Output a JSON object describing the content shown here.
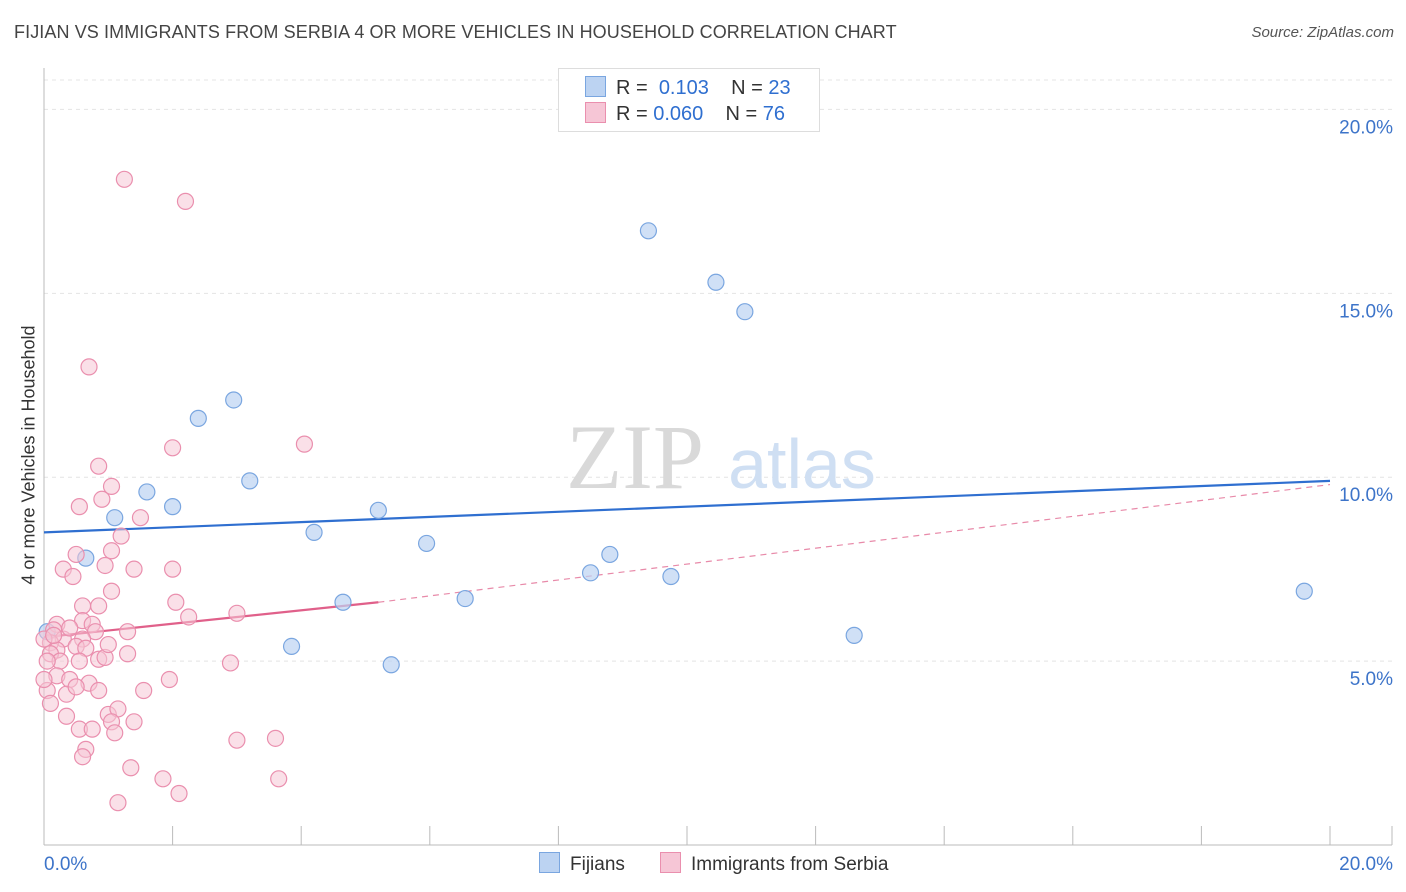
{
  "title": "FIJIAN VS IMMIGRANTS FROM SERBIA 4 OR MORE VEHICLES IN HOUSEHOLD CORRELATION CHART",
  "source": "Source: ZipAtlas.com",
  "watermark": {
    "zip": "ZIP",
    "atlas": "atlas"
  },
  "legend": {
    "r_label": "R =",
    "n_label": "N =",
    "rows": [
      {
        "r": "0.103",
        "n": "23"
      },
      {
        "r": "0.060",
        "n": "76"
      }
    ]
  },
  "chart_data": {
    "type": "scatter",
    "title": "FIJIAN VS IMMIGRANTS FROM SERBIA 4 OR MORE VEHICLES IN HOUSEHOLD CORRELATION CHART",
    "xlabel": "",
    "ylabel": "4 or more Vehicles in Household",
    "xlim": [
      0,
      20
    ],
    "ylim": [
      0,
      20.8
    ],
    "x_tick_labels": [
      "0.0%",
      "20.0%"
    ],
    "y_ticks": [
      5,
      10,
      15,
      20
    ],
    "y_tick_labels": [
      "5.0%",
      "10.0%",
      "15.0%",
      "20.0%"
    ],
    "grid": true,
    "series": [
      {
        "name": "Fijians",
        "color": "#7aa6e0",
        "fill": "#bcd3f2",
        "r": "0.103",
        "n": "23",
        "trend": {
          "x0": 0,
          "y0": 8.5,
          "x1": 20,
          "y1": 9.9,
          "style": "solid",
          "color": "#2f6fd0"
        },
        "points": [
          [
            0.65,
            7.8
          ],
          [
            1.1,
            8.9
          ],
          [
            1.6,
            9.6
          ],
          [
            2.0,
            9.2
          ],
          [
            2.4,
            11.6
          ],
          [
            2.95,
            12.1
          ],
          [
            3.2,
            9.9
          ],
          [
            3.85,
            5.4
          ],
          [
            4.2,
            8.5
          ],
          [
            4.65,
            6.6
          ],
          [
            5.2,
            9.1
          ],
          [
            5.4,
            4.9
          ],
          [
            5.95,
            8.2
          ],
          [
            6.55,
            6.7
          ],
          [
            8.5,
            7.4
          ],
          [
            8.8,
            7.9
          ],
          [
            9.4,
            16.7
          ],
          [
            9.75,
            7.3
          ],
          [
            10.45,
            15.3
          ],
          [
            10.9,
            14.5
          ],
          [
            12.6,
            5.7
          ],
          [
            19.6,
            6.9
          ],
          [
            0.05,
            5.8
          ]
        ]
      },
      {
        "name": "Immigrants from Serbia",
        "color": "#ea8fae",
        "fill": "#f6c6d6",
        "r": "0.060",
        "n": "76",
        "trend": {
          "x0": 0,
          "y0": 5.65,
          "x1": 5.2,
          "y1": 6.6,
          "style": "solid",
          "color": "#e0608a"
        },
        "trend_ext": {
          "x0": 5.2,
          "y0": 6.6,
          "x1": 20,
          "y1": 9.8,
          "style": "dashed",
          "color": "#e88aa9"
        },
        "points": [
          [
            1.25,
            18.1
          ],
          [
            2.2,
            17.5
          ],
          [
            0.7,
            13.0
          ],
          [
            2.0,
            10.8
          ],
          [
            4.05,
            10.9
          ],
          [
            0.85,
            10.3
          ],
          [
            0.55,
            9.2
          ],
          [
            1.05,
            9.75
          ],
          [
            0.9,
            9.4
          ],
          [
            1.5,
            8.9
          ],
          [
            1.2,
            8.4
          ],
          [
            1.05,
            8.0
          ],
          [
            0.5,
            7.9
          ],
          [
            0.3,
            7.5
          ],
          [
            1.4,
            7.5
          ],
          [
            0.45,
            7.3
          ],
          [
            2.0,
            7.5
          ],
          [
            0.95,
            7.6
          ],
          [
            1.05,
            6.9
          ],
          [
            0.6,
            6.5
          ],
          [
            0.85,
            6.5
          ],
          [
            2.05,
            6.6
          ],
          [
            0.2,
            6.0
          ],
          [
            0.6,
            6.1
          ],
          [
            0.75,
            6.0
          ],
          [
            2.25,
            6.2
          ],
          [
            3.0,
            6.3
          ],
          [
            0.15,
            5.85
          ],
          [
            0.8,
            5.8
          ],
          [
            1.3,
            5.8
          ],
          [
            0.3,
            5.6
          ],
          [
            0.6,
            5.6
          ],
          [
            0.1,
            5.5
          ],
          [
            0.2,
            5.3
          ],
          [
            0.5,
            5.4
          ],
          [
            0.65,
            5.35
          ],
          [
            0.1,
            5.2
          ],
          [
            0.25,
            5.0
          ],
          [
            0.55,
            5.0
          ],
          [
            0.85,
            5.05
          ],
          [
            0.95,
            5.1
          ],
          [
            1.3,
            5.2
          ],
          [
            0.0,
            5.6
          ],
          [
            0.05,
            5.0
          ],
          [
            0.2,
            4.6
          ],
          [
            0.4,
            4.5
          ],
          [
            0.05,
            4.2
          ],
          [
            0.35,
            4.1
          ],
          [
            0.7,
            4.4
          ],
          [
            0.85,
            4.2
          ],
          [
            1.55,
            4.2
          ],
          [
            1.95,
            4.5
          ],
          [
            2.9,
            4.95
          ],
          [
            0.1,
            3.85
          ],
          [
            0.35,
            3.5
          ],
          [
            1.0,
            3.55
          ],
          [
            1.15,
            3.7
          ],
          [
            0.55,
            3.15
          ],
          [
            0.75,
            3.15
          ],
          [
            1.05,
            3.35
          ],
          [
            1.4,
            3.35
          ],
          [
            1.1,
            3.05
          ],
          [
            0.65,
            2.6
          ],
          [
            0.6,
            2.4
          ],
          [
            3.0,
            2.85
          ],
          [
            3.6,
            2.9
          ],
          [
            1.35,
            2.1
          ],
          [
            1.85,
            1.8
          ],
          [
            3.65,
            1.8
          ],
          [
            2.1,
            1.4
          ],
          [
            1.15,
            1.15
          ],
          [
            0.0,
            4.5
          ],
          [
            0.15,
            5.7
          ],
          [
            0.4,
            5.9
          ],
          [
            1.0,
            5.45
          ],
          [
            0.5,
            4.3
          ]
        ]
      }
    ]
  },
  "bottom_legend": [
    "Fijians",
    "Immigrants from Serbia"
  ]
}
